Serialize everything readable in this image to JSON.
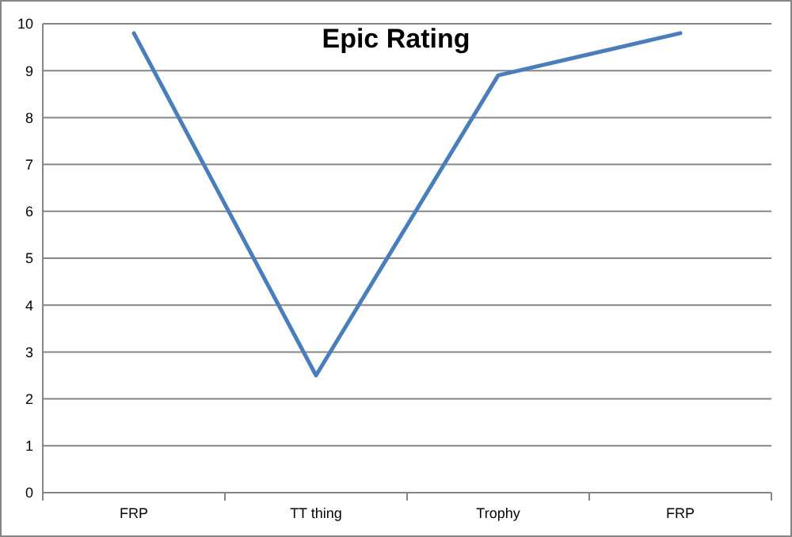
{
  "chart_data": {
    "type": "line",
    "title": "Epic Rating",
    "categories": [
      "FRP",
      "TT thing",
      "Trophy",
      "FRP"
    ],
    "series": [
      {
        "color": "#4a7ebb",
        "values": [
          9.8,
          2.5,
          8.9,
          9.8
        ]
      }
    ],
    "ylim": [
      0,
      10
    ],
    "yticks": [
      0,
      1,
      2,
      3,
      4,
      5,
      6,
      7,
      8,
      9,
      10
    ],
    "grid": "y",
    "marker": "none",
    "line_style": "solid"
  }
}
